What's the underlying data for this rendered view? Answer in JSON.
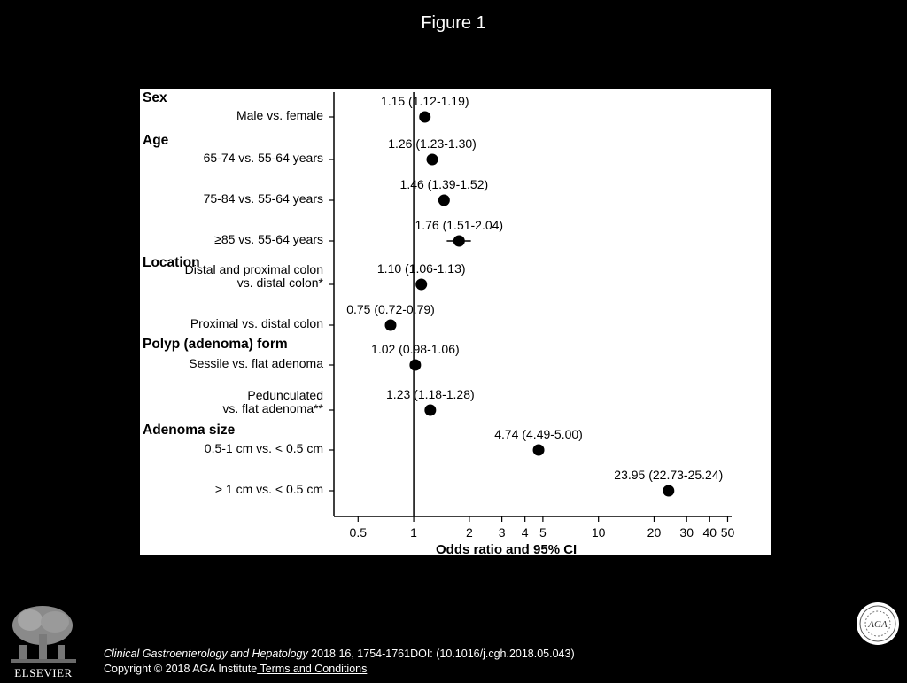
{
  "figure_title": "Figure 1",
  "chart_data": {
    "type": "scatter",
    "subtype": "forest-plot",
    "xlabel": "Odds ratio and 95% CI",
    "xscale": "log",
    "xlim": [
      0.37,
      60
    ],
    "reference_line": 1,
    "x_ticks": [
      0.5,
      1,
      2,
      3,
      4,
      5,
      10,
      20,
      30,
      40,
      50
    ],
    "x_tick_labels": [
      "0.5",
      "1",
      "2",
      "3",
      "4",
      "5",
      "10",
      "20",
      "30",
      "40",
      "50"
    ],
    "groups": [
      {
        "title": "Sex",
        "rows": [
          {
            "label": [
              "Male vs. female"
            ],
            "or": 1.15,
            "ci": [
              1.12,
              1.19
            ],
            "text": "1.15 (1.12-1.19)"
          }
        ]
      },
      {
        "title": "Age",
        "rows": [
          {
            "label": [
              "65-74 vs. 55-64 years"
            ],
            "or": 1.26,
            "ci": [
              1.23,
              1.3
            ],
            "text": "1.26 (1.23-1.30)"
          },
          {
            "label": [
              "75-84 vs. 55-64 years"
            ],
            "or": 1.46,
            "ci": [
              1.39,
              1.52
            ],
            "text": "1.46 (1.39-1.52)"
          },
          {
            "label": [
              "≥85 vs. 55-64 years"
            ],
            "or": 1.76,
            "ci": [
              1.51,
              2.04
            ],
            "text": "1.76 (1.51-2.04)"
          }
        ]
      },
      {
        "title": "Location",
        "rows": [
          {
            "label": [
              "Distal and proximal colon",
              "vs. distal colon*"
            ],
            "or": 1.1,
            "ci": [
              1.06,
              1.13
            ],
            "text": "1.10 (1.06-1.13)"
          },
          {
            "label": [
              "Proximal vs. distal colon"
            ],
            "or": 0.75,
            "ci": [
              0.72,
              0.79
            ],
            "text": "0.75 (0.72-0.79)"
          }
        ]
      },
      {
        "title": "Polyp (adenoma) form",
        "rows": [
          {
            "label": [
              "Sessile vs. flat adenoma"
            ],
            "or": 1.02,
            "ci": [
              0.98,
              1.06
            ],
            "text": "1.02 (0.98-1.06)"
          },
          {
            "label": [
              "Pedunculated",
              "vs. flat adenoma**"
            ],
            "or": 1.23,
            "ci": [
              1.18,
              1.28
            ],
            "text": "1.23 (1.18-1.28)"
          }
        ]
      },
      {
        "title": "Adenoma size",
        "rows": [
          {
            "label": [
              "0.5-1 cm vs. < 0.5 cm"
            ],
            "or": 4.74,
            "ci": [
              4.49,
              5.0
            ],
            "text": "4.74 (4.49-5.00)"
          },
          {
            "label": [
              "> 1 cm vs. < 0.5 cm"
            ],
            "or": 23.95,
            "ci": [
              22.73,
              25.24
            ],
            "text": "23.95 (22.73-25.24)"
          }
        ]
      }
    ]
  },
  "footer": {
    "publisher_logo_text": "ELSEVIER",
    "society_logo_text": "AGA",
    "citation_journal": "Clinical Gastroenterology and Hepatology",
    "citation_rest": " 2018 16, 1754-1761DOI: (10.1016/j.cgh.2018.05.043)",
    "copyright": "Copyright © 2018 AGA Institute",
    "terms_link": " Terms and Conditions"
  }
}
